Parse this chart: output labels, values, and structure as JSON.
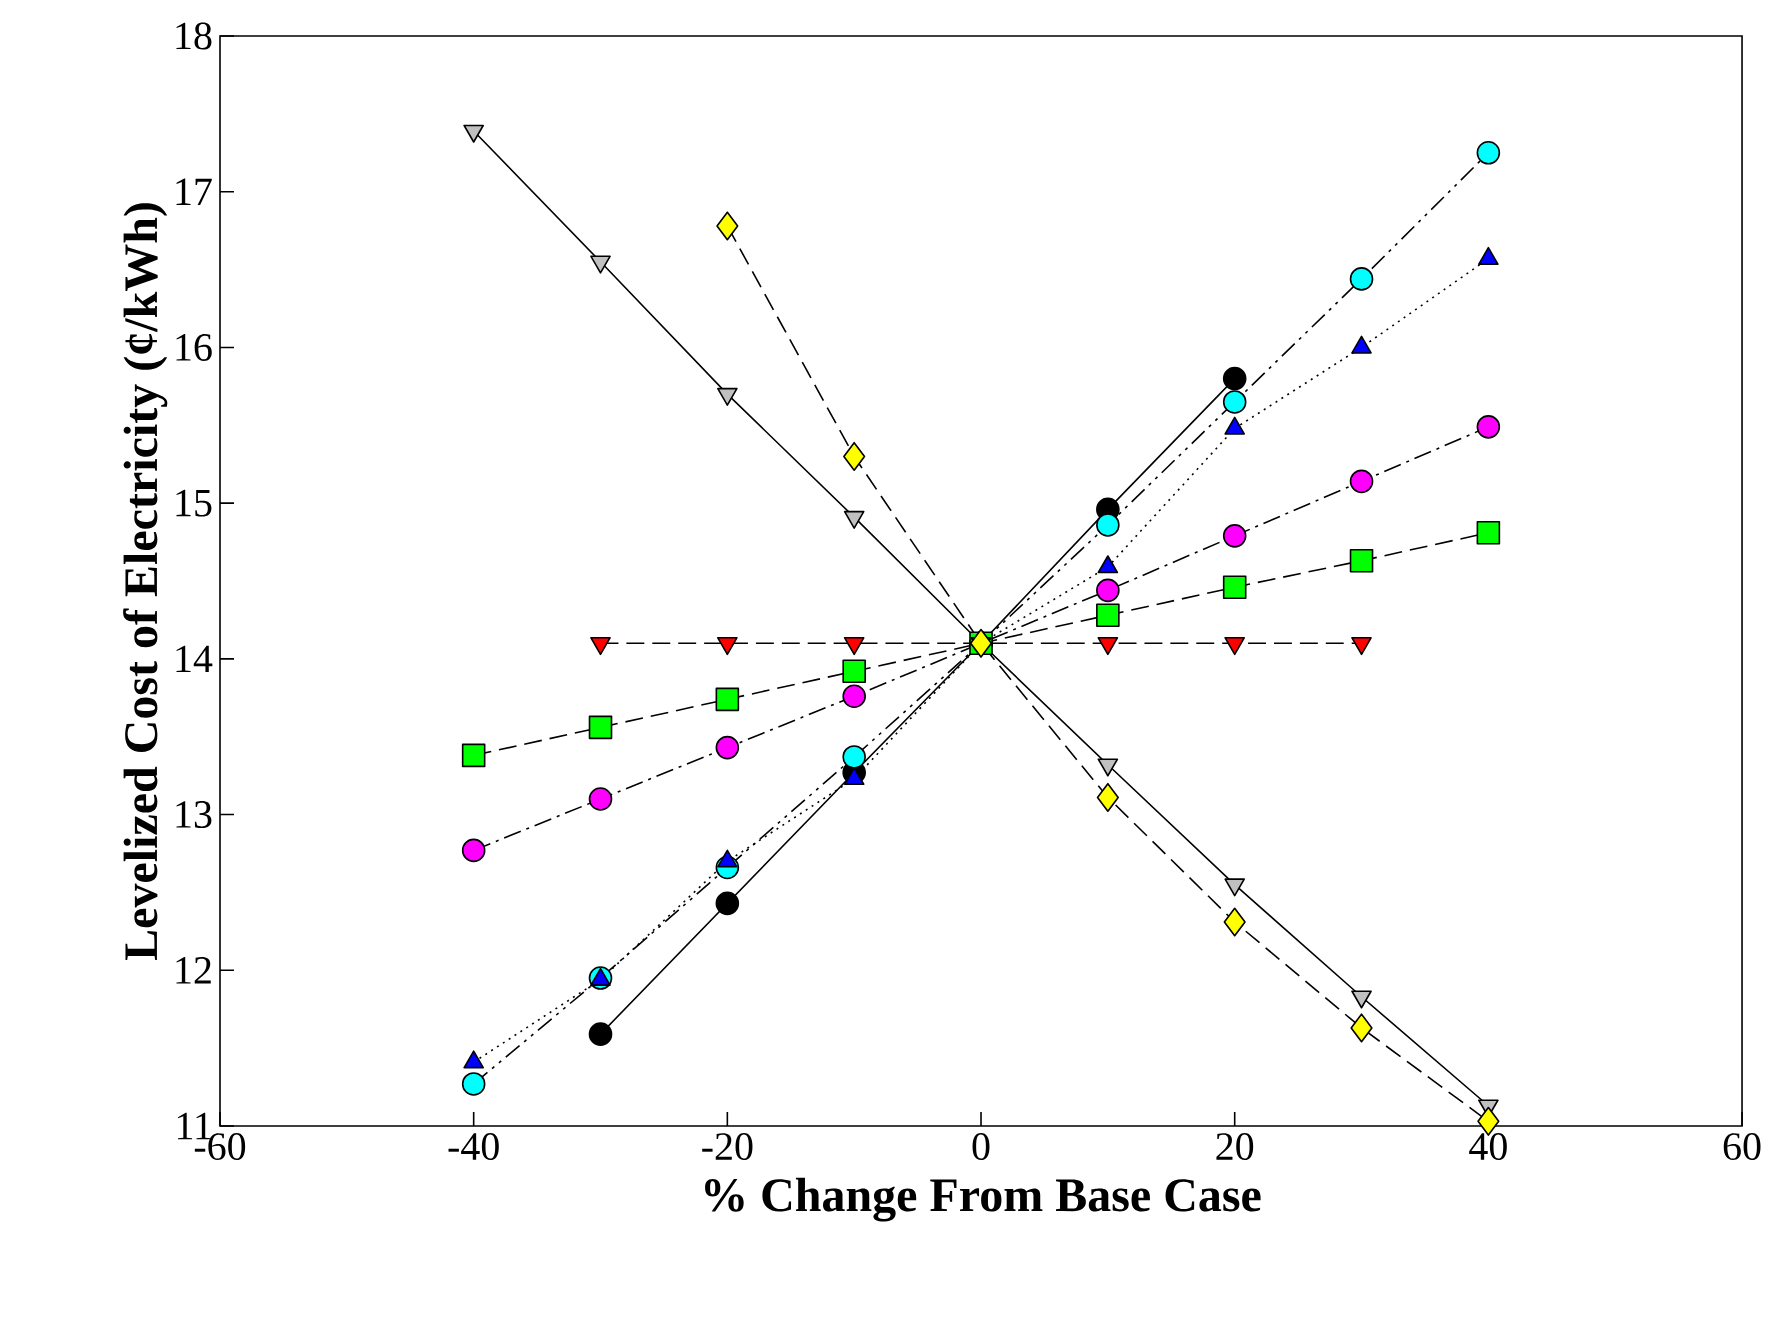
{
  "chart_data": {
    "type": "line",
    "xlabel": "% Change From Base Case",
    "ylabel": "Levelized Cost of Electricity (¢/kWh)",
    "xlim": [
      -60,
      60
    ],
    "ylim": [
      11,
      18
    ],
    "xticks": [
      -60,
      -40,
      -20,
      0,
      20,
      40,
      60
    ],
    "yticks": [
      11,
      12,
      13,
      14,
      15,
      16,
      17,
      18
    ],
    "series": [
      {
        "color": "#000000",
        "marker": "circle",
        "line_style": "solid",
        "x": [
          -30,
          -20,
          -10,
          0,
          10,
          20
        ],
        "values": [
          11.59,
          12.43,
          13.27,
          14.1,
          14.96,
          15.8
        ]
      },
      {
        "color": "#00ffff",
        "marker": "circle",
        "line_style": "dashdotdot",
        "x": [
          -40,
          -30,
          -20,
          -10,
          0,
          10,
          20,
          30,
          40
        ],
        "values": [
          11.27,
          11.95,
          12.66,
          13.37,
          14.1,
          14.86,
          15.65,
          16.44,
          17.25
        ]
      },
      {
        "color": "#0000ff",
        "marker": "triangle",
        "line_style": "dotted",
        "x": [
          -40,
          -30,
          -20,
          -10,
          0,
          10,
          20,
          30,
          40
        ],
        "values": [
          11.41,
          11.94,
          12.7,
          13.23,
          14.1,
          14.59,
          15.48,
          16.0,
          16.57
        ]
      },
      {
        "color": "#ff00ff",
        "marker": "circle",
        "line_style": "dashdot",
        "x": [
          -40,
          -30,
          -20,
          -10,
          0,
          10,
          20,
          30,
          40
        ],
        "values": [
          12.77,
          13.1,
          13.43,
          13.76,
          14.1,
          14.44,
          14.79,
          15.14,
          15.49
        ]
      },
      {
        "color": "#00ff00",
        "marker": "square",
        "line_style": "dashed",
        "x": [
          -40,
          -30,
          -20,
          -10,
          0,
          10,
          20,
          30,
          40
        ],
        "values": [
          13.38,
          13.56,
          13.74,
          13.92,
          14.1,
          14.28,
          14.46,
          14.63,
          14.81
        ]
      },
      {
        "color": "#ff0000",
        "marker": "triangle-down",
        "line_style": "dashed",
        "x": [
          -30,
          -20,
          -10,
          0,
          10,
          20,
          30
        ],
        "values": [
          14.1,
          14.1,
          14.1,
          14.1,
          14.1,
          14.1,
          14.1
        ]
      },
      {
        "color": "#c0c0c0",
        "marker": "triangle-down",
        "line_style": "solid",
        "x": [
          -40,
          -30,
          -20,
          -10,
          0,
          10,
          20,
          30,
          40
        ],
        "values": [
          17.39,
          16.55,
          15.7,
          14.91,
          14.1,
          13.32,
          12.55,
          11.83,
          11.13
        ]
      },
      {
        "color": "#ffff00",
        "marker": "diamond",
        "line_style": "dashed",
        "x": [
          -20,
          -10,
          0,
          10,
          20,
          30,
          40
        ],
        "values": [
          16.78,
          15.3,
          14.1,
          13.11,
          12.31,
          11.63,
          11.03
        ]
      }
    ]
  }
}
